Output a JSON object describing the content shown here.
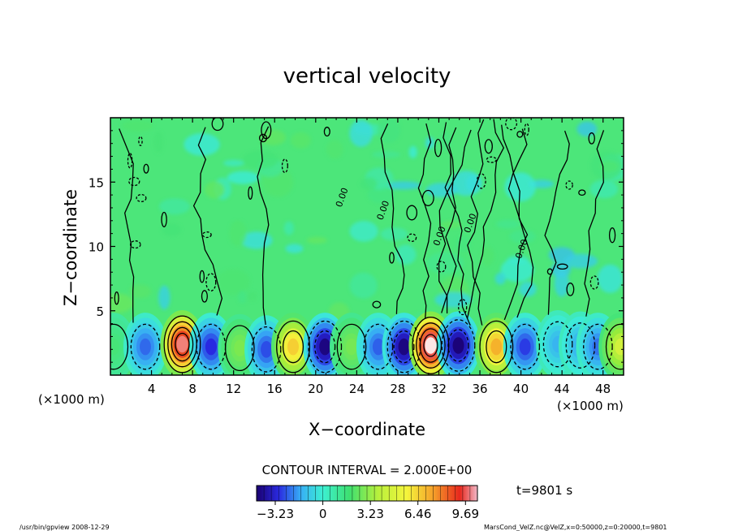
{
  "chart_data": {
    "type": "heatmap",
    "title": "vertical velocity",
    "xlabel": "X−coordinate",
    "ylabel": "Z−coordinate",
    "x_unit_left": "(×1000 m)",
    "x_unit_right": "(×1000 m)",
    "xlim": [
      0,
      50
    ],
    "ylim": [
      0,
      20
    ],
    "x_ticks": [
      4,
      8,
      12,
      16,
      20,
      24,
      28,
      32,
      36,
      40,
      44,
      48
    ],
    "y_ticks": [
      5,
      10,
      15
    ],
    "contour_interval_text": "CONTOUR INTERVAL = 2.000E+00",
    "time_text": "t=9801 s",
    "colorbar": {
      "range": [
        -4.5,
        10.5
      ],
      "tick_labels": [
        "−3.23",
        "0",
        "3.23",
        "6.46",
        "9.69"
      ],
      "tick_values": [
        -3.23,
        0,
        3.23,
        6.46,
        9.69
      ]
    },
    "contour_labels": [
      "0.00",
      "0.00",
      "0.00",
      "0.00",
      "0.00"
    ],
    "cells": [
      {
        "x": 0.3,
        "z": 2.2,
        "w": 0.5
      },
      {
        "x": 3.4,
        "z": 2.2,
        "w": -2.5
      },
      {
        "x": 7.0,
        "z": 2.4,
        "w": 9.0
      },
      {
        "x": 9.8,
        "z": 2.2,
        "w": -3.2
      },
      {
        "x": 12.6,
        "z": 2.1,
        "w": 1.5
      },
      {
        "x": 15.2,
        "z": 2.0,
        "w": -2.8
      },
      {
        "x": 17.8,
        "z": 2.2,
        "w": 4.5
      },
      {
        "x": 20.9,
        "z": 2.2,
        "w": -4.3
      },
      {
        "x": 23.5,
        "z": 2.2,
        "w": 1.4
      },
      {
        "x": 26.1,
        "z": 2.2,
        "w": -2.6
      },
      {
        "x": 28.6,
        "z": 2.2,
        "w": -4.3
      },
      {
        "x": 31.2,
        "z": 2.3,
        "w": 10.2
      },
      {
        "x": 33.9,
        "z": 2.3,
        "w": -4.4
      },
      {
        "x": 37.6,
        "z": 2.2,
        "w": 5.2
      },
      {
        "x": 40.4,
        "z": 2.2,
        "w": -3.0
      },
      {
        "x": 43.6,
        "z": 2.4,
        "w": -1.6
      },
      {
        "x": 45.8,
        "z": 2.3,
        "w": -1.8
      },
      {
        "x": 47.5,
        "z": 2.2,
        "w": -2.4
      },
      {
        "x": 49.7,
        "z": 2.2,
        "w": 3.0
      }
    ],
    "grid": false
  },
  "footer": {
    "left": "/usr/bin/gpview   2008-12-29",
    "right": "MarsCond_VelZ.nc@VelZ,x=0:50000,z=0:20000,t=9801"
  }
}
